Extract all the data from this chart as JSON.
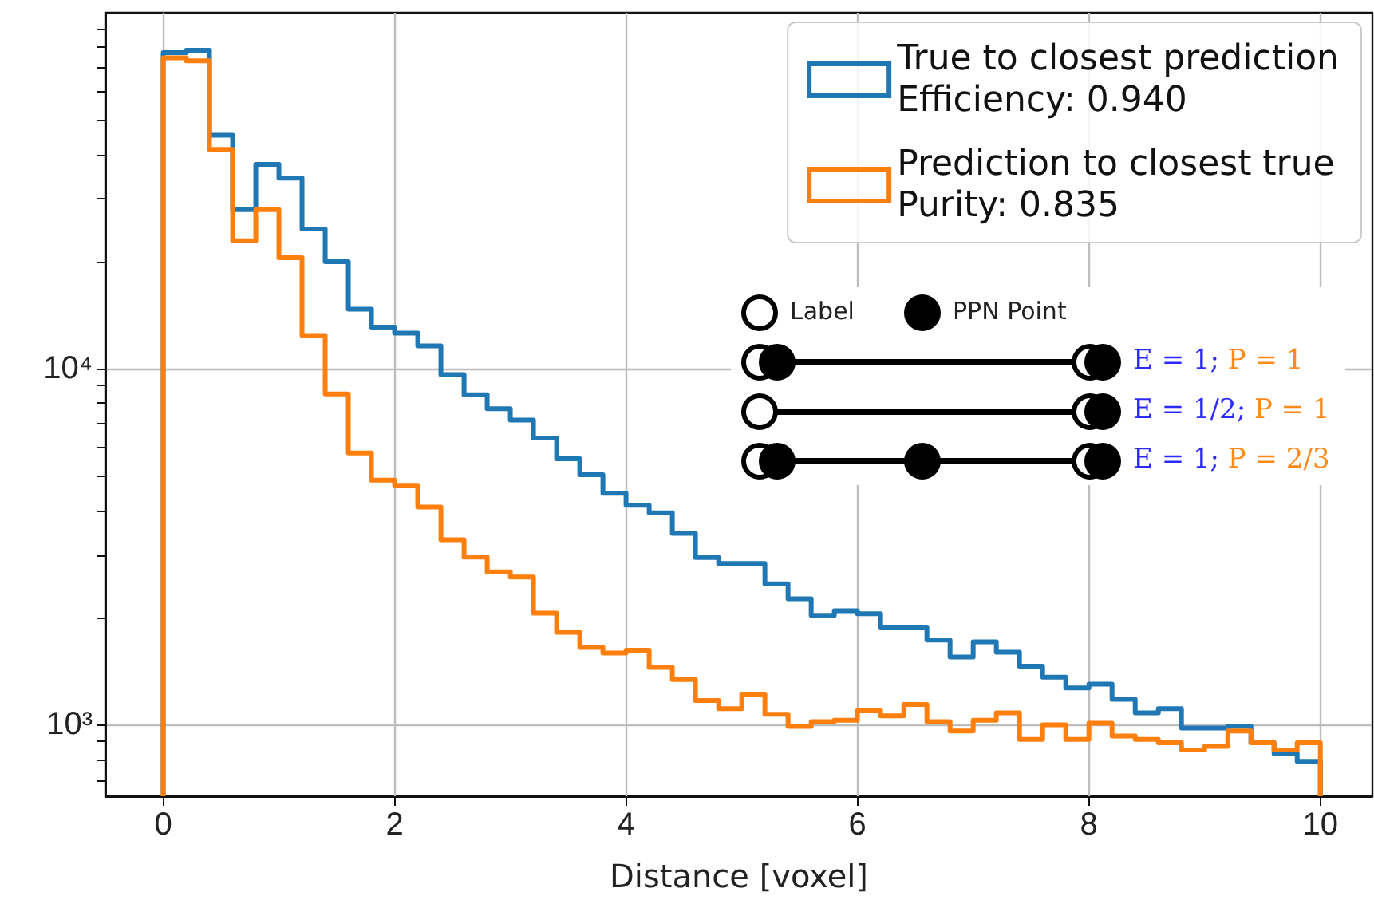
{
  "chart_data": {
    "type": "histogram",
    "xlabel": "Distance [voxel]",
    "bins": [
      0,
      0.2,
      0.4,
      0.6,
      0.8,
      1,
      1.2,
      1.4,
      1.6,
      1.8,
      2,
      2.2,
      2.4,
      2.6,
      2.8,
      3,
      3.2,
      3.4,
      3.6,
      3.8,
      4,
      4.2,
      4.4,
      4.6,
      4.8,
      5,
      5.2,
      5.4,
      5.6,
      5.8,
      6,
      6.2,
      6.4,
      6.6,
      6.8,
      7,
      7.2,
      7.4,
      7.6,
      7.8,
      8,
      8.2,
      8.4,
      8.6,
      8.8,
      9,
      9.2,
      9.4,
      9.6,
      9.8,
      10
    ],
    "series": [
      {
        "name": "True to closest prediction\nEfficiency: 0.940",
        "color": "#1f77b4",
        "values": [
          77300,
          78500,
          45300,
          28000,
          37500,
          34300,
          24700,
          20000,
          14700,
          13100,
          12600,
          11600,
          9630,
          8450,
          7730,
          7180,
          6390,
          5590,
          5040,
          4470,
          4140,
          3940,
          3450,
          2950,
          2840,
          2840,
          2490,
          2260,
          2030,
          2090,
          2050,
          1880,
          1880,
          1730,
          1550,
          1710,
          1600,
          1460,
          1360,
          1270,
          1300,
          1180,
          1080,
          1110,
          980,
          980,
          990,
          890,
          830,
          790
        ]
      },
      {
        "name": "Prediction to closest true\nPurity: 0.835",
        "color": "#ff7f0e",
        "values": [
          74700,
          73300,
          41300,
          22900,
          28000,
          20500,
          12400,
          8500,
          5800,
          4870,
          4710,
          4090,
          3310,
          2960,
          2690,
          2600,
          2060,
          1820,
          1650,
          1590,
          1620,
          1450,
          1340,
          1170,
          1110,
          1220,
          1070,
          990,
          1020,
          1030,
          1100,
          1060,
          1140,
          1020,
          960,
          1030,
          1080,
          910,
          1000,
          910,
          1010,
          930,
          910,
          890,
          850,
          870,
          960,
          890,
          850,
          890
        ]
      }
    ],
    "xlim": [
      -0.5,
      10.45
    ],
    "xticks": [
      0,
      2,
      4,
      6,
      8,
      10
    ],
    "ylim": [
      630,
      100000
    ],
    "log": true,
    "yticks": [
      {
        "value": 700,
        "label": null
      },
      {
        "value": 800,
        "label": null
      },
      {
        "value": 900,
        "label": null
      },
      {
        "value": 1000,
        "label": "10³"
      },
      {
        "value": 2000,
        "label": null
      },
      {
        "value": 3000,
        "label": null
      },
      {
        "value": 4000,
        "label": null
      },
      {
        "value": 5000,
        "label": null
      },
      {
        "value": 6000,
        "label": null
      },
      {
        "value": 7000,
        "label": null
      },
      {
        "value": 8000,
        "label": null
      },
      {
        "value": 9000,
        "label": null
      },
      {
        "value": 10000,
        "label": "10⁴"
      },
      {
        "value": 20000,
        "label": null
      },
      {
        "value": 30000,
        "label": null
      },
      {
        "value": 40000,
        "label": null
      },
      {
        "value": 50000,
        "label": null
      },
      {
        "value": 60000,
        "label": null
      },
      {
        "value": 70000,
        "label": null
      },
      {
        "value": 80000,
        "label": null
      },
      {
        "value": 90000,
        "label": null
      }
    ],
    "grid": true,
    "legend": "top right",
    "annotations": [
      "Label",
      "PPN Point",
      "E = 1; P = 1",
      "E = 1/2; P = 1",
      "E = 1; P = 2/3"
    ]
  }
}
